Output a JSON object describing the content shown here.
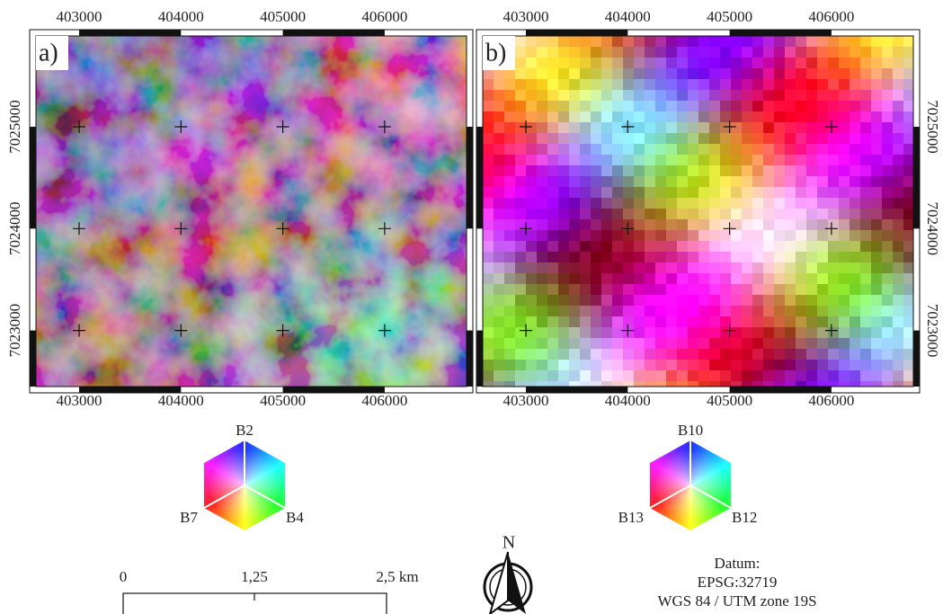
{
  "panels": [
    {
      "label": "a)",
      "x_ticks": [
        403000,
        404000,
        405000,
        406000
      ],
      "y_ticks": [
        7025000,
        7024000,
        7023000
      ],
      "legend": {
        "top": "B2",
        "left": "B7",
        "right": "B4"
      }
    },
    {
      "label": "b)",
      "x_ticks": [
        403000,
        404000,
        405000,
        406000
      ],
      "y_ticks": [
        7025000,
        7024000,
        7023000
      ],
      "legend": {
        "top": "B10",
        "left": "B13",
        "right": "B12"
      }
    }
  ],
  "scale_bar": {
    "labels": [
      "0",
      "1,25",
      "2,5 km"
    ]
  },
  "north_arrow": {
    "label": "N"
  },
  "datum": {
    "title": "Datum:",
    "epsg": "EPSG:32719",
    "crs": "WGS 84 / UTM zone 19S"
  }
}
